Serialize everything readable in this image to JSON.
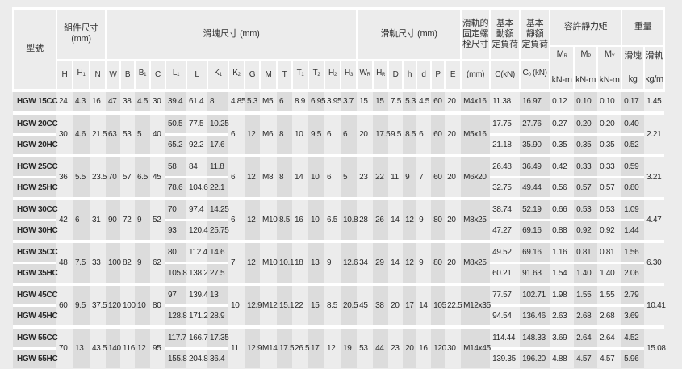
{
  "header": {
    "model": "型號",
    "assembly": "組件尺寸",
    "assembly_unit": "(mm)",
    "block": "滑塊尺寸 (mm)",
    "rail": "滑軌尺寸 (mm)",
    "bolt_lines": [
      "滑軌的",
      "固定螺",
      "栓尺寸"
    ],
    "dynamic_lines": [
      "基本",
      "動額",
      "定負荷"
    ],
    "static_lines": [
      "基本",
      "靜額",
      "定負荷"
    ],
    "moment": "容許靜力矩",
    "weight": "重量",
    "moments": [
      {
        "sym": "M",
        "sub": "R",
        "unit": "kN-m"
      },
      {
        "sym": "M",
        "sub": "P",
        "unit": "kN-m"
      },
      {
        "sym": "M",
        "sub": "Y",
        "unit": "kN-m"
      }
    ],
    "weights": [
      {
        "label": "滑塊",
        "unit": "kg"
      },
      {
        "label": "滑軌",
        "unit": "kg/m"
      }
    ],
    "dims": [
      {
        "sym": "H",
        "sub": ""
      },
      {
        "sym": "H",
        "sub": "1"
      },
      {
        "sym": "N",
        "sub": ""
      },
      {
        "sym": "W",
        "sub": ""
      },
      {
        "sym": "B",
        "sub": ""
      },
      {
        "sym": "B",
        "sub": "1"
      },
      {
        "sym": "C",
        "sub": ""
      },
      {
        "sym": "L",
        "sub": "1"
      },
      {
        "sym": "L",
        "sub": ""
      },
      {
        "sym": "K",
        "sub": "1"
      },
      {
        "sym": "K",
        "sub": "2"
      },
      {
        "sym": "G",
        "sub": ""
      },
      {
        "sym": "M",
        "sub": ""
      },
      {
        "sym": "T",
        "sub": ""
      },
      {
        "sym": "T",
        "sub": "1"
      },
      {
        "sym": "T",
        "sub": "2"
      },
      {
        "sym": "H",
        "sub": "2"
      },
      {
        "sym": "H",
        "sub": "3"
      },
      {
        "sym": "W",
        "sub": "R"
      },
      {
        "sym": "H",
        "sub": "R"
      },
      {
        "sym": "D",
        "sub": ""
      },
      {
        "sym": "h",
        "sub": ""
      },
      {
        "sym": "d",
        "sub": ""
      },
      {
        "sym": "P",
        "sub": ""
      },
      {
        "sym": "E",
        "sub": ""
      }
    ],
    "bolt_unit": "(mm)",
    "c_label": "C(kN)",
    "c0_label": {
      "sym": "C",
      "sub": "0",
      "rest": " (kN)"
    }
  },
  "column_keys": [
    "H",
    "H1",
    "N",
    "W",
    "B",
    "B1",
    "C",
    "L1",
    "L",
    "K1",
    "K2",
    "G",
    "M",
    "T",
    "T1",
    "T2",
    "H2",
    "H3",
    "WR",
    "HR",
    "D",
    "h",
    "d",
    "P",
    "E",
    "bolt",
    "Cdyn",
    "C0",
    "MR",
    "MP",
    "MY",
    "kg_block",
    "kg_rail"
  ],
  "groups": [
    {
      "shared": {
        "H": "24",
        "H1": "4.3",
        "N": "16",
        "W": "47",
        "B": "38",
        "B1": "4.5",
        "C": "30",
        "K2": "4.85",
        "G": "5.3",
        "M": "M5",
        "T": "6",
        "T1": "8.9",
        "T2": "6.95",
        "H2": "3.95",
        "H3": "3.7",
        "WR": "15",
        "HR": "15",
        "D": "7.5",
        "h": "5.3",
        "d": "4.5",
        "P": "60",
        "E": "20",
        "bolt": "M4x16",
        "kg_rail": "1.45"
      },
      "variants": [
        {
          "model": "HGW 15CC",
          "L1": "39.4",
          "L": "61.4",
          "K1": "8",
          "Cdyn": "11.38",
          "C0": "16.97",
          "MR": "0.12",
          "MP": "0.10",
          "MY": "0.10",
          "kg_block": "0.17"
        }
      ]
    },
    {
      "shared": {
        "H": "30",
        "H1": "4.6",
        "N": "21.5",
        "W": "63",
        "B": "53",
        "B1": "5",
        "C": "40",
        "K2": "6",
        "G": "12",
        "M": "M6",
        "T": "8",
        "T1": "10",
        "T2": "9.5",
        "H2": "6",
        "H3": "6",
        "WR": "20",
        "HR": "17.5",
        "D": "9.5",
        "h": "8.5",
        "d": "6",
        "P": "60",
        "E": "20",
        "bolt": "M5x16",
        "kg_rail": "2.21"
      },
      "variants": [
        {
          "model": "HGW 20CC",
          "L1": "50.5",
          "L": "77.5",
          "K1": "10.25",
          "Cdyn": "17.75",
          "C0": "27.76",
          "MR": "0.27",
          "MP": "0.20",
          "MY": "0.20",
          "kg_block": "0.40"
        },
        {
          "model": "HGW 20HC",
          "L1": "65.2",
          "L": "92.2",
          "K1": "17.6",
          "Cdyn": "21.18",
          "C0": "35.90",
          "MR": "0.35",
          "MP": "0.35",
          "MY": "0.35",
          "kg_block": "0.52"
        }
      ]
    },
    {
      "shared": {
        "H": "36",
        "H1": "5.5",
        "N": "23.5",
        "W": "70",
        "B": "57",
        "B1": "6.5",
        "C": "45",
        "K2": "6",
        "G": "12",
        "M": "M8",
        "T": "8",
        "T1": "14",
        "T2": "10",
        "H2": "6",
        "H3": "5",
        "WR": "23",
        "HR": "22",
        "D": "11",
        "h": "9",
        "d": "7",
        "P": "60",
        "E": "20",
        "bolt": "M6x20",
        "kg_rail": "3.21"
      },
      "variants": [
        {
          "model": "HGW 25CC",
          "L1": "58",
          "L": "84",
          "K1": "11.8",
          "Cdyn": "26.48",
          "C0": "36.49",
          "MR": "0.42",
          "MP": "0.33",
          "MY": "0.33",
          "kg_block": "0.59"
        },
        {
          "model": "HGW 25HC",
          "L1": "78.6",
          "L": "104.6",
          "K1": "22.1",
          "Cdyn": "32.75",
          "C0": "49.44",
          "MR": "0.56",
          "MP": "0.57",
          "MY": "0.57",
          "kg_block": "0.80"
        }
      ]
    },
    {
      "shared": {
        "H": "42",
        "H1": "6",
        "N": "31",
        "W": "90",
        "B": "72",
        "B1": "9",
        "C": "52",
        "K2": "6",
        "G": "12",
        "M": "M10",
        "T": "8.5",
        "T1": "16",
        "T2": "10",
        "H2": "6.5",
        "H3": "10.8",
        "WR": "28",
        "HR": "26",
        "D": "14",
        "h": "12",
        "d": "9",
        "P": "80",
        "E": "20",
        "bolt": "M8x25",
        "kg_rail": "4.47"
      },
      "variants": [
        {
          "model": "HGW 30CC",
          "L1": "70",
          "L": "97.4",
          "K1": "14.25",
          "Cdyn": "38.74",
          "C0": "52.19",
          "MR": "0.66",
          "MP": "0.53",
          "MY": "0.53",
          "kg_block": "1.09"
        },
        {
          "model": "HGW 30HC",
          "L1": "93",
          "L": "120.4",
          "K1": "25.75",
          "Cdyn": "47.27",
          "C0": "69.16",
          "MR": "0.88",
          "MP": "0.92",
          "MY": "0.92",
          "kg_block": "1.44"
        }
      ]
    },
    {
      "shared": {
        "H": "48",
        "H1": "7.5",
        "N": "33",
        "W": "100",
        "B": "82",
        "B1": "9",
        "C": "62",
        "K2": "7",
        "G": "12",
        "M": "M10",
        "T": "10.1",
        "T1": "18",
        "T2": "13",
        "H2": "9",
        "H3": "12.6",
        "WR": "34",
        "HR": "29",
        "D": "14",
        "h": "12",
        "d": "9",
        "P": "80",
        "E": "20",
        "bolt": "M8x25",
        "kg_rail": "6.30"
      },
      "variants": [
        {
          "model": "HGW 35CC",
          "L1": "80",
          "L": "112.4",
          "K1": "14.6",
          "Cdyn": "49.52",
          "C0": "69.16",
          "MR": "1.16",
          "MP": "0.81",
          "MY": "0.81",
          "kg_block": "1.56"
        },
        {
          "model": "HGW 35HC",
          "L1": "105.8",
          "L": "138.2",
          "K1": "27.5",
          "Cdyn": "60.21",
          "C0": "91.63",
          "MR": "1.54",
          "MP": "1.40",
          "MY": "1.40",
          "kg_block": "2.06"
        }
      ]
    },
    {
      "shared": {
        "H": "60",
        "H1": "9.5",
        "N": "37.5",
        "W": "120",
        "B": "100",
        "B1": "10",
        "C": "80",
        "K2": "10",
        "G": "12.9",
        "M": "M12",
        "T": "15.1",
        "T1": "22",
        "T2": "15",
        "H2": "8.5",
        "H3": "20.5",
        "WR": "45",
        "HR": "38",
        "D": "20",
        "h": "17",
        "d": "14",
        "P": "105",
        "E": "22.5",
        "bolt": "M12x35",
        "kg_rail": "10.41"
      },
      "variants": [
        {
          "model": "HGW 45CC",
          "L1": "97",
          "L": "139.4",
          "K1": "13",
          "Cdyn": "77.57",
          "C0": "102.71",
          "MR": "1.98",
          "MP": "1.55",
          "MY": "1.55",
          "kg_block": "2.79"
        },
        {
          "model": "HGW 45HC",
          "L1": "128.8",
          "L": "171.2",
          "K1": "28.9",
          "Cdyn": "94.54",
          "C0": "136.46",
          "MR": "2.63",
          "MP": "2.68",
          "MY": "2.68",
          "kg_block": "3.69"
        }
      ]
    },
    {
      "shared": {
        "H": "70",
        "H1": "13",
        "N": "43.5",
        "W": "140",
        "B": "116",
        "B1": "12",
        "C": "95",
        "K2": "11",
        "G": "12.9",
        "M": "M14",
        "T": "17.5",
        "T1": "26.5",
        "T2": "17",
        "H2": "12",
        "H3": "19",
        "WR": "53",
        "HR": "44",
        "D": "23",
        "h": "20",
        "d": "16",
        "P": "120",
        "E": "30",
        "bolt": "M14x45",
        "kg_rail": "15.08"
      },
      "variants": [
        {
          "model": "HGW 55CC",
          "L1": "117.7",
          "L": "166.7",
          "K1": "17.35",
          "Cdyn": "114.44",
          "C0": "148.33",
          "MR": "3.69",
          "MP": "2.64",
          "MY": "2.64",
          "kg_block": "4.52"
        },
        {
          "model": "HGW 55HC",
          "L1": "155.8",
          "L": "204.8",
          "K1": "36.4",
          "Cdyn": "139.35",
          "C0": "196.20",
          "MR": "4.88",
          "MP": "4.57",
          "MY": "4.57",
          "kg_block": "5.96"
        }
      ]
    }
  ],
  "colors": {
    "shade_dark": "#dcdcdc",
    "shade_light": "#ececec",
    "separator": "#ffffff"
  }
}
